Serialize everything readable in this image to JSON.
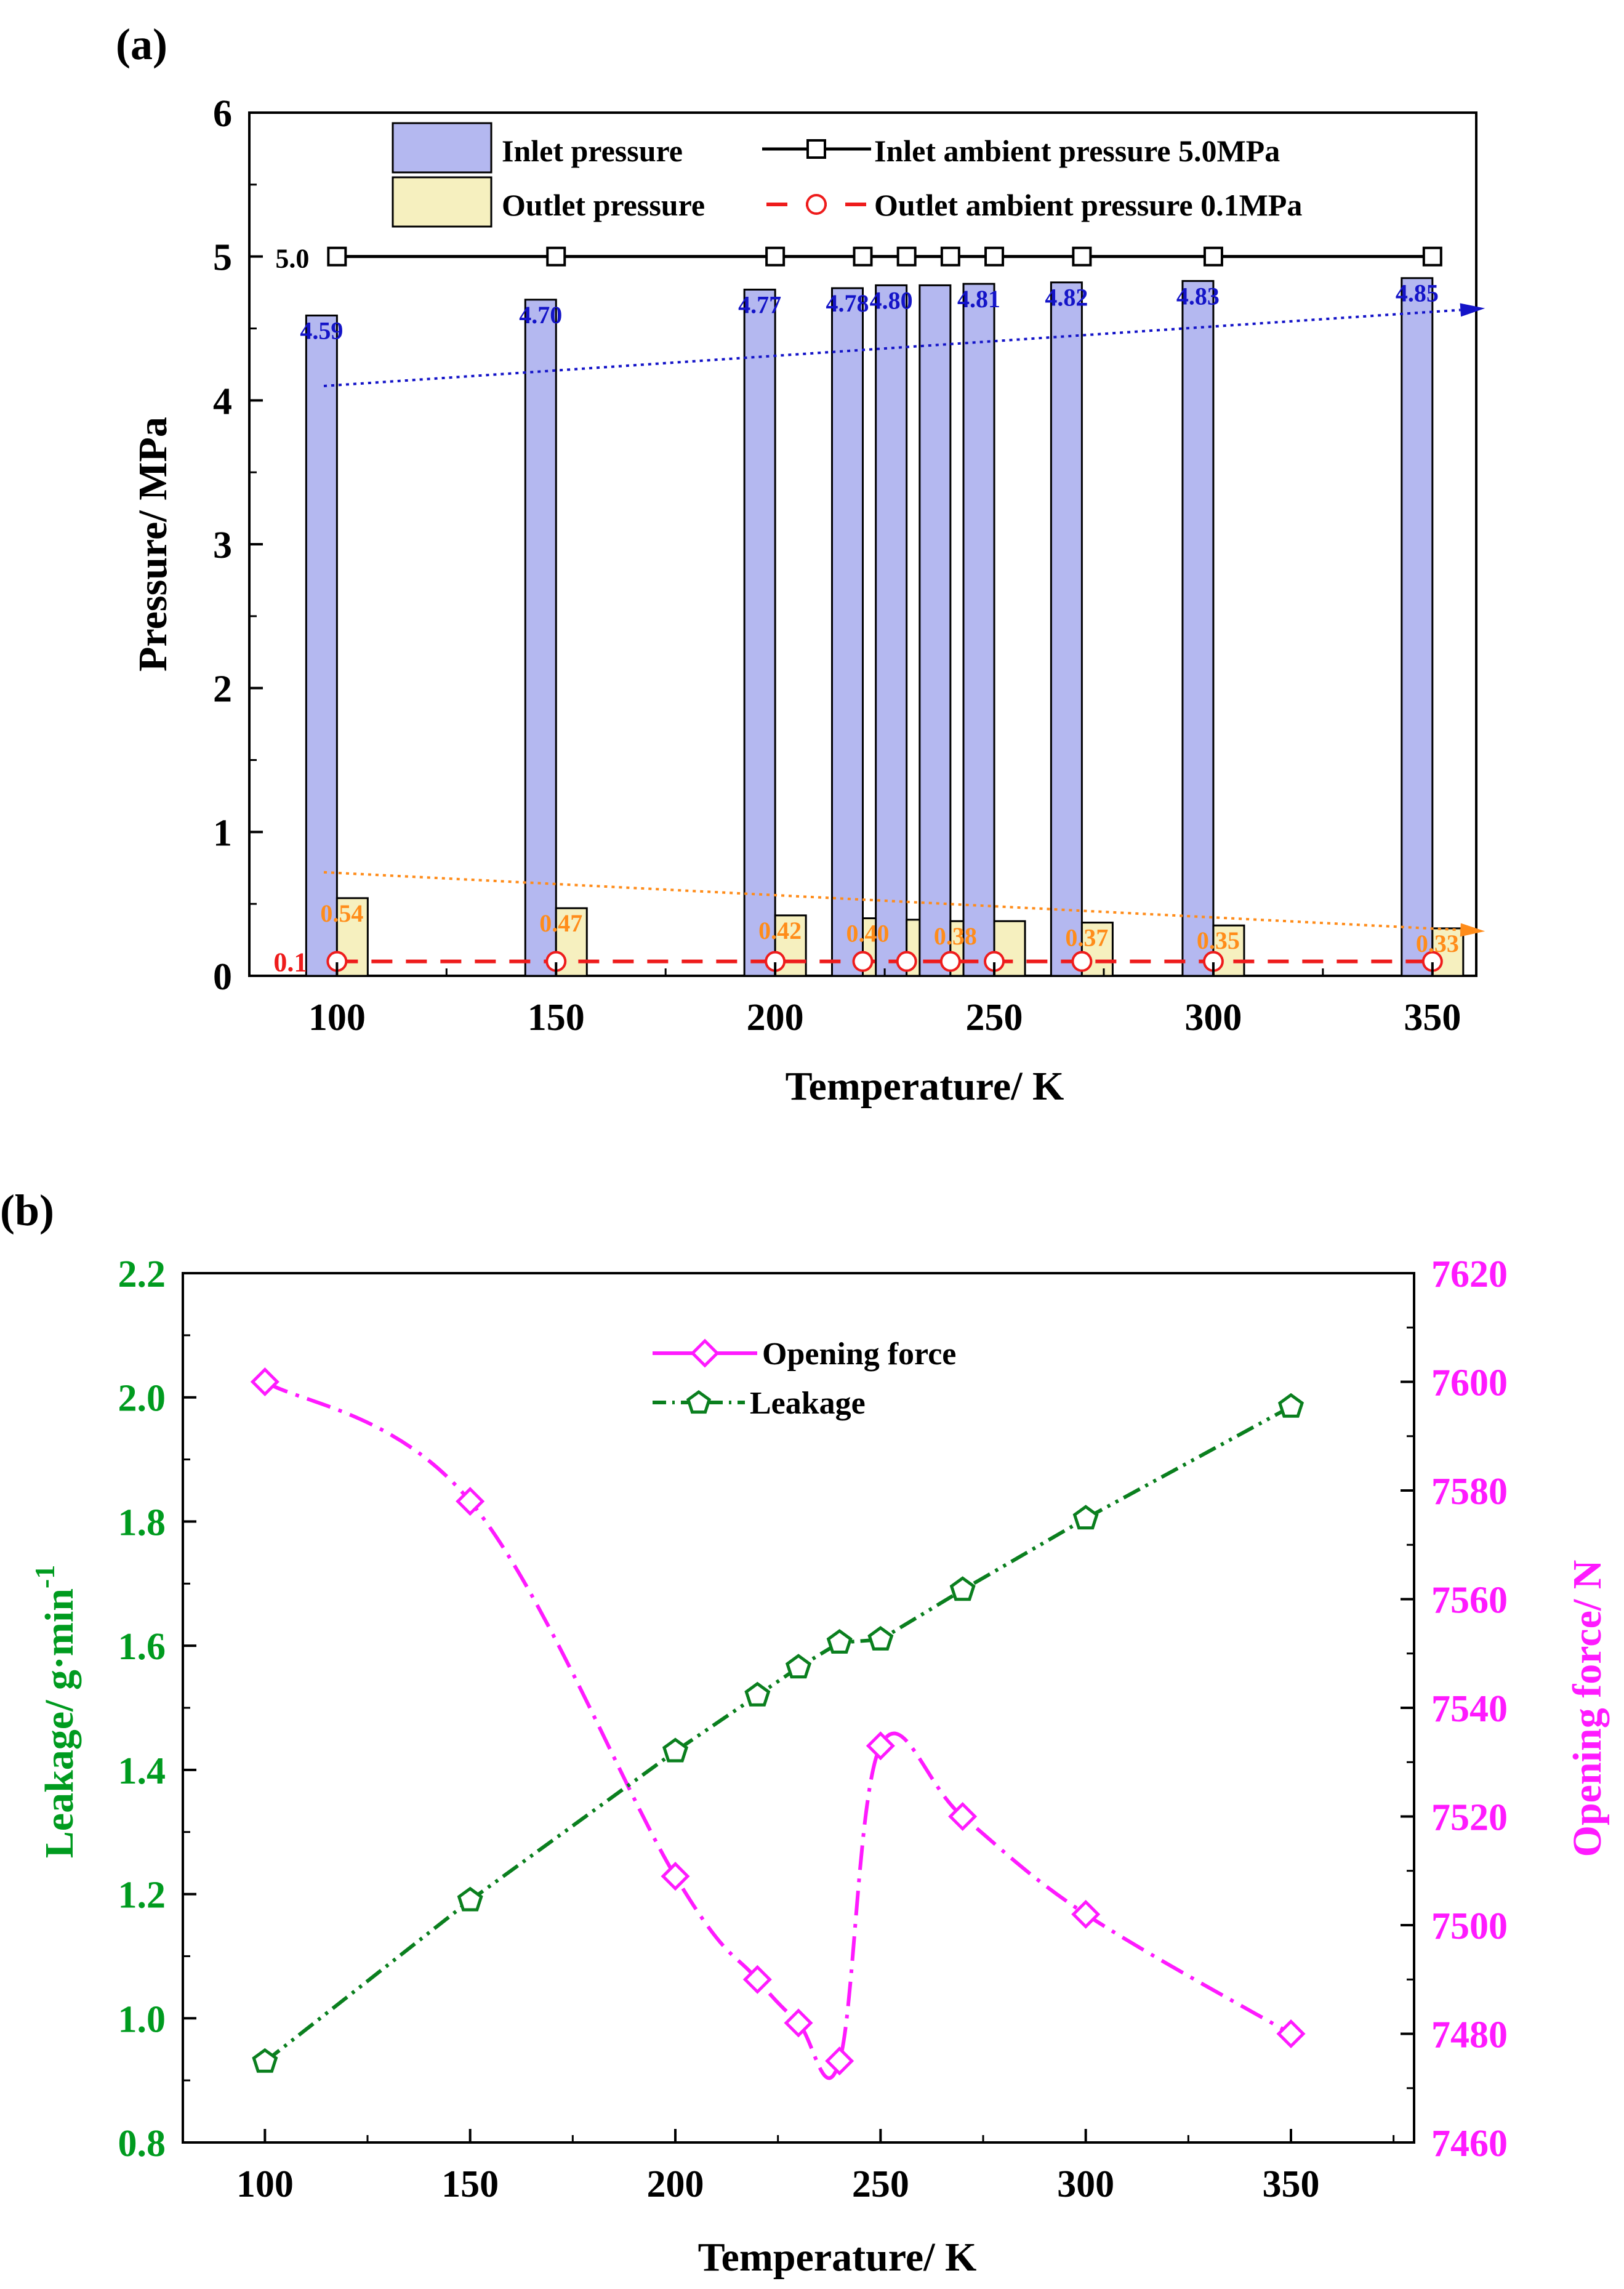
{
  "chart_data": [
    {
      "panel_label": "(a)",
      "type": "bar",
      "xlabel": "Temperature/ K",
      "ylabel": "Pressure/ MPa",
      "xlim": [
        80,
        360
      ],
      "ylim": [
        0,
        6
      ],
      "xticks": [
        100,
        150,
        200,
        250,
        300,
        350
      ],
      "yticks": [
        0,
        1,
        2,
        3,
        4,
        5,
        6
      ],
      "grid": false,
      "legend_position": "top",
      "categories": [
        100,
        150,
        200,
        220,
        230,
        240,
        250,
        270,
        300,
        350
      ],
      "series": [
        {
          "name": "Inlet pressure",
          "kind": "bar",
          "color": "#b4b8f0",
          "values": [
            4.59,
            4.7,
            4.77,
            4.78,
            4.8,
            4.8,
            4.81,
            4.82,
            4.83,
            4.85
          ],
          "labels": [
            "4.59",
            "4.70",
            "4.77",
            "4.78",
            "4.80",
            "4.80",
            "4.81",
            "4.82",
            "4.83",
            "4.85"
          ],
          "shown_labels": [
            "4.59",
            "4.70",
            "4.77",
            "4.78",
            "4.80",
            "4.81",
            "4.82",
            "4.83",
            "4.85"
          ],
          "label_color": "#1414c8"
        },
        {
          "name": "Outlet pressure",
          "kind": "bar",
          "color": "#f6f0bf",
          "values": [
            0.54,
            0.47,
            0.42,
            0.4,
            0.39,
            0.38,
            0.38,
            0.37,
            0.35,
            0.33
          ],
          "labels": [
            "0.54",
            "0.47",
            "0.42",
            "0.40",
            "0.39",
            "0.38",
            "0.38",
            "0.37",
            "0.35",
            "0.33"
          ],
          "shown_labels": [
            "0.54",
            "0.47",
            "0.42",
            "0.40",
            "0.38",
            "0.37",
            "0.35",
            "0.33"
          ],
          "label_color": "#ff8c1a"
        },
        {
          "name": "Inlet ambient pressure 5.0MPa",
          "kind": "line",
          "color": "#000000",
          "marker": "square",
          "x": [
            100,
            150,
            200,
            220,
            230,
            240,
            250,
            270,
            300,
            350
          ],
          "values": [
            5.0,
            5.0,
            5.0,
            5.0,
            5.0,
            5.0,
            5.0,
            5.0,
            5.0,
            5.0
          ],
          "end_label": "5.0"
        },
        {
          "name": "Outlet ambient pressure 0.1MPa",
          "kind": "line",
          "color": "#ee1c1c",
          "marker": "circle",
          "linestyle": "dashed",
          "x": [
            100,
            150,
            200,
            220,
            230,
            240,
            250,
            270,
            300,
            350
          ],
          "values": [
            0.1,
            0.1,
            0.1,
            0.1,
            0.1,
            0.1,
            0.1,
            0.1,
            0.1,
            0.1
          ],
          "end_label": "0.1"
        }
      ],
      "trend_arrows": [
        {
          "name": "inlet-trend",
          "color": "#1414c8",
          "from": [
            97,
            4.1
          ],
          "to": [
            362,
            4.64
          ]
        },
        {
          "name": "outlet-trend",
          "color": "#ff8c1a",
          "from": [
            97,
            0.72
          ],
          "to": [
            362,
            0.31
          ]
        }
      ]
    },
    {
      "panel_label": "(b)",
      "type": "line",
      "xlabel": "Temperature/ K",
      "ylabel_left": "Leakage/ g·min",
      "ylabel_left_sup": "-1",
      "ylabel_right": "Opening force/ N",
      "xlim": [
        80,
        380
      ],
      "ylim_left": [
        0.8,
        2.2
      ],
      "ylim_right": [
        7460,
        7620
      ],
      "xticks": [
        100,
        150,
        200,
        250,
        300,
        350
      ],
      "yticks_left": [
        0.8,
        1.0,
        1.2,
        1.4,
        1.6,
        1.8,
        2.0,
        2.2
      ],
      "yticks_left_labels": [
        "0.8",
        "1.0",
        "1.2",
        "1.4",
        "1.6",
        "1.8",
        "2.0",
        "2.2"
      ],
      "yticks_right": [
        7460,
        7480,
        7500,
        7520,
        7540,
        7560,
        7580,
        7600,
        7620
      ],
      "grid": false,
      "legend_position": "top-center",
      "left_axis_color": "#009b1f",
      "right_axis_color": "#ff1aff",
      "series": [
        {
          "name": "Opening force",
          "axis": "right",
          "color": "#ff1aff",
          "marker": "diamond",
          "linestyle": "dash-dot",
          "x": [
            100,
            150,
            200,
            220,
            230,
            240,
            250,
            270,
            300,
            350
          ],
          "values": [
            7600,
            7578,
            7509,
            7490,
            7482,
            7475,
            7533,
            7520,
            7502,
            7480
          ]
        },
        {
          "name": "Leakage",
          "axis": "left",
          "color": "#0a7f1e",
          "marker": "pentagon",
          "linestyle": "dash-dot-dot",
          "x": [
            100,
            150,
            200,
            220,
            230,
            240,
            250,
            270,
            300,
            350
          ],
          "values": [
            0.93,
            1.19,
            1.43,
            1.52,
            1.565,
            1.605,
            1.61,
            1.69,
            1.805,
            1.985
          ]
        }
      ]
    }
  ]
}
